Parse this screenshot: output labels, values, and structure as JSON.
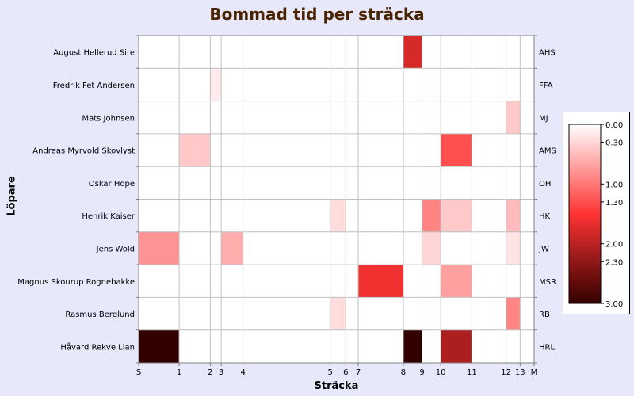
{
  "chart_data": {
    "type": "heatmap",
    "title": "Bommad tid per sträcka",
    "xlabel": "Sträcka",
    "ylabel": "Löpare",
    "x_ticks": [
      {
        "label": "S",
        "pos": 0
      },
      {
        "label": "1",
        "pos": 1
      },
      {
        "label": "2",
        "pos": 2
      },
      {
        "label": "3",
        "pos": 3
      },
      {
        "label": "4",
        "pos": 4
      },
      {
        "label": "5",
        "pos": 5
      },
      {
        "label": "6",
        "pos": 6
      },
      {
        "label": "7",
        "pos": 7
      },
      {
        "label": "8",
        "pos": 8
      },
      {
        "label": "9",
        "pos": 9
      },
      {
        "label": "10",
        "pos": 10
      },
      {
        "label": "11",
        "pos": 11
      },
      {
        "label": "12",
        "pos": 12
      },
      {
        "label": "13",
        "pos": 13
      },
      {
        "label": "M",
        "pos": 14
      }
    ],
    "legs": [
      {
        "from": 0,
        "to": 1,
        "length": 1.3
      },
      {
        "from": 1,
        "to": 2,
        "length": 1.0
      },
      {
        "from": 2,
        "to": 3,
        "length": 0.35
      },
      {
        "from": 3,
        "to": 4,
        "length": 0.7
      },
      {
        "from": 4,
        "to": 5,
        "length": 2.8
      },
      {
        "from": 5,
        "to": 6,
        "length": 0.5
      },
      {
        "from": 6,
        "to": 7,
        "length": 0.4
      },
      {
        "from": 7,
        "to": 8,
        "length": 1.45
      },
      {
        "from": 8,
        "to": 9,
        "length": 0.6
      },
      {
        "from": 9,
        "to": 10,
        "length": 0.6
      },
      {
        "from": 10,
        "to": 11,
        "length": 1.0
      },
      {
        "from": 11,
        "to": 12,
        "length": 1.1
      },
      {
        "from": 12,
        "to": 13,
        "length": 0.45
      },
      {
        "from": 13,
        "to": 14,
        "length": 0.45
      }
    ],
    "runners": [
      {
        "name": "August Hellerud Sire",
        "abbr": "AHS",
        "values": [
          0,
          0,
          0,
          0,
          0,
          0,
          0,
          0,
          1.8,
          0,
          0,
          0,
          0,
          0
        ]
      },
      {
        "name": "Fredrik Fet Andersen",
        "abbr": "FFA",
        "values": [
          0,
          0,
          0.15,
          0,
          0,
          0,
          0,
          0,
          0,
          0,
          0,
          0,
          0,
          0
        ]
      },
      {
        "name": "Mats Johnsen",
        "abbr": "MJ",
        "values": [
          0,
          0,
          0,
          0,
          0,
          0,
          0,
          0,
          0,
          0,
          0,
          0,
          0.4,
          0
        ]
      },
      {
        "name": "Andreas Myrvold Skovlyst",
        "abbr": "AMS",
        "values": [
          0,
          0.4,
          0,
          0,
          0,
          0,
          0,
          0,
          0,
          0,
          1.3,
          0,
          0,
          0
        ]
      },
      {
        "name": "Oskar Hope",
        "abbr": "OH",
        "values": [
          0,
          0,
          0,
          0,
          0,
          0,
          0,
          0,
          0,
          0,
          0,
          0,
          0,
          0
        ]
      },
      {
        "name": "Henrik Kaiser",
        "abbr": "HK",
        "values": [
          0,
          0,
          0,
          0,
          0,
          0.25,
          0,
          0,
          0,
          0.9,
          0.4,
          0,
          0.5,
          0
        ]
      },
      {
        "name": "Jens Wold",
        "abbr": "JW",
        "values": [
          0.8,
          0,
          0,
          0.6,
          0,
          0,
          0,
          0,
          0,
          0.3,
          0,
          0,
          0.2,
          0
        ]
      },
      {
        "name": "Magnus Skourup Rognebakke",
        "abbr": "MSR",
        "values": [
          0,
          0,
          0,
          0,
          0,
          0,
          0,
          1.6,
          0,
          0,
          0.7,
          0,
          0,
          0
        ]
      },
      {
        "name": "Rasmus Berglund",
        "abbr": "RB",
        "values": [
          0,
          0,
          0,
          0,
          0,
          0.25,
          0,
          0,
          0,
          0,
          0,
          0,
          0.9,
          0
        ]
      },
      {
        "name": "Håvard Rekve Lian",
        "abbr": "HRL",
        "values": [
          3.0,
          0,
          0,
          0,
          0,
          0,
          0,
          0,
          3.0,
          0,
          2.1,
          0,
          0,
          0
        ]
      }
    ],
    "legend": {
      "labels": [
        "0.00",
        "0.30",
        "1.00",
        "1.30",
        "2.00",
        "2.30",
        "3.00"
      ],
      "values": [
        0,
        0.3,
        1.0,
        1.3,
        2.0,
        2.3,
        3.0
      ],
      "placement": "right",
      "colors": [
        "#ffffff",
        "#ff3333",
        "#330000"
      ]
    },
    "grid": true
  }
}
